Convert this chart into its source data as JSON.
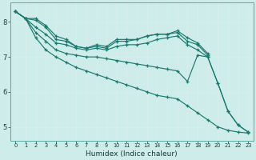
{
  "background_color": "#ceecea",
  "grid_color": "#b8ddd9",
  "line_color": "#1a7a6e",
  "xlabel": "Humidex (Indice chaleur)",
  "xlim": [
    -0.5,
    23.5
  ],
  "ylim": [
    4.6,
    8.55
  ],
  "yticks": [
    5,
    6,
    7,
    8
  ],
  "xticks": [
    0,
    1,
    2,
    3,
    4,
    5,
    6,
    7,
    8,
    9,
    10,
    11,
    12,
    13,
    14,
    15,
    16,
    17,
    18,
    19,
    20,
    21,
    22,
    23
  ],
  "series": [
    [
      8.3,
      8.1,
      8.1,
      7.9,
      7.6,
      7.5,
      7.3,
      7.25,
      7.35,
      7.3,
      7.5,
      7.5,
      7.5,
      7.6,
      7.65,
      7.65,
      7.75,
      7.55,
      7.4,
      7.1,
      null,
      null,
      null,
      null
    ],
    [
      8.3,
      8.1,
      8.05,
      7.85,
      7.5,
      7.45,
      7.3,
      7.25,
      7.3,
      7.25,
      7.45,
      7.45,
      7.5,
      7.6,
      7.65,
      7.65,
      7.7,
      7.45,
      7.35,
      7.05,
      null,
      null,
      null,
      null
    ],
    [
      8.3,
      8.1,
      7.85,
      7.65,
      7.4,
      7.35,
      7.25,
      7.2,
      7.25,
      7.2,
      7.3,
      7.35,
      7.35,
      7.4,
      7.5,
      7.55,
      7.6,
      7.35,
      7.2,
      7.0,
      6.25,
      5.45,
      5.05,
      4.85
    ],
    [
      8.3,
      8.1,
      7.7,
      7.45,
      7.2,
      7.1,
      7.05,
      7.0,
      7.0,
      6.95,
      6.9,
      6.85,
      6.8,
      6.75,
      6.7,
      6.65,
      6.6,
      6.3,
      7.05,
      7.0,
      6.25,
      5.45,
      5.05,
      4.85
    ],
    [
      8.3,
      8.1,
      7.55,
      7.2,
      7.0,
      6.85,
      6.7,
      6.6,
      6.5,
      6.4,
      6.3,
      6.2,
      6.1,
      6.0,
      5.9,
      5.85,
      5.8,
      5.6,
      5.4,
      5.2,
      5.0,
      4.9,
      4.85,
      4.82
    ]
  ]
}
